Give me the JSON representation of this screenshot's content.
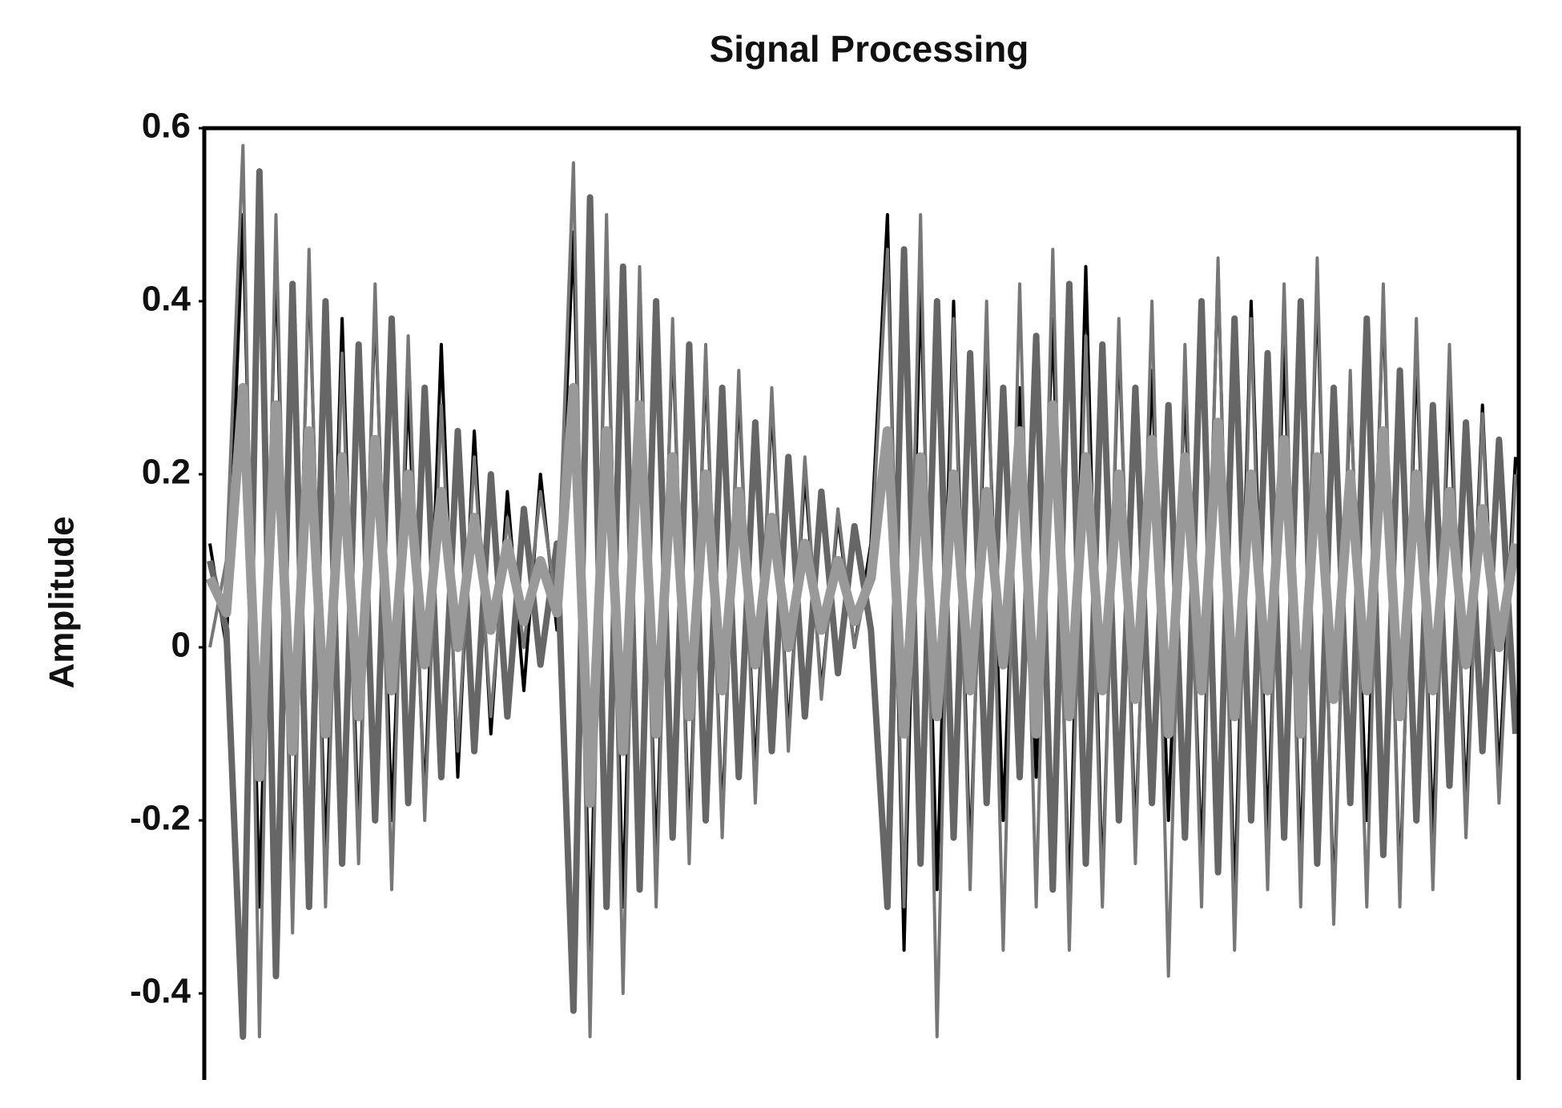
{
  "chart_data": {
    "type": "line",
    "title": "Signal Processing",
    "y_label": "Amplitude",
    "ylim": [
      -0.5,
      0.6
    ],
    "yticks": [
      -0.4,
      -0.2,
      0,
      0.2,
      0.4,
      0.6
    ],
    "grid": false,
    "series": [
      {
        "color": "#000000",
        "values": [
          0.12,
          0.0,
          0.5,
          -0.3,
          0.45,
          -0.28,
          0.44,
          -0.25,
          0.38,
          -0.22,
          0.4,
          -0.2,
          0.3,
          -0.18,
          0.35,
          -0.15,
          0.25,
          -0.1,
          0.18,
          -0.05,
          0.2,
          0.02,
          0.48,
          -0.35,
          0.45,
          -0.3,
          0.4,
          -0.25,
          0.36,
          -0.22,
          0.33,
          -0.2,
          0.3,
          -0.15,
          0.28,
          -0.1,
          0.2,
          -0.05,
          0.15,
          0.0,
          0.12,
          0.5,
          -0.35,
          0.42,
          -0.28,
          0.4,
          -0.25,
          0.35,
          -0.2,
          0.3,
          -0.15,
          0.38,
          -0.3,
          0.44,
          -0.28,
          0.36,
          -0.22,
          0.32,
          -0.2,
          0.3,
          -0.25,
          0.44,
          -0.3,
          0.4,
          -0.22,
          0.35,
          -0.25,
          0.42,
          -0.3,
          0.3,
          -0.2,
          0.4,
          -0.28,
          0.34,
          -0.22,
          0.3,
          -0.18,
          0.28,
          -0.15,
          0.22
        ]
      },
      {
        "color": "#666666",
        "values": [
          0.1,
          0.02,
          -0.45,
          0.55,
          -0.38,
          0.42,
          -0.3,
          0.4,
          -0.25,
          0.35,
          -0.2,
          0.38,
          -0.18,
          0.3,
          -0.15,
          0.25,
          -0.12,
          0.2,
          -0.08,
          0.16,
          -0.02,
          0.12,
          -0.42,
          0.52,
          -0.3,
          0.44,
          -0.28,
          0.4,
          -0.22,
          0.35,
          -0.2,
          0.3,
          -0.15,
          0.26,
          -0.12,
          0.22,
          -0.08,
          0.18,
          -0.03,
          0.14,
          0.02,
          -0.3,
          0.46,
          -0.25,
          0.4,
          -0.22,
          0.34,
          -0.18,
          0.3,
          -0.15,
          0.36,
          -0.28,
          0.42,
          -0.25,
          0.35,
          -0.2,
          0.3,
          -0.18,
          0.28,
          -0.22,
          0.4,
          -0.26,
          0.38,
          -0.2,
          0.34,
          -0.22,
          0.4,
          -0.25,
          0.3,
          -0.18,
          0.38,
          -0.24,
          0.32,
          -0.2,
          0.28,
          -0.16,
          0.26,
          -0.12,
          0.24,
          -0.1
        ]
      },
      {
        "color": "#777777",
        "values": [
          0.0,
          0.1,
          0.58,
          -0.45,
          0.5,
          -0.33,
          0.46,
          -0.3,
          0.34,
          -0.25,
          0.42,
          -0.28,
          0.36,
          -0.2,
          0.28,
          -0.12,
          0.22,
          -0.08,
          0.15,
          0.0,
          0.18,
          0.04,
          0.56,
          -0.45,
          0.5,
          -0.4,
          0.44,
          -0.3,
          0.38,
          -0.25,
          0.35,
          -0.22,
          0.32,
          -0.18,
          0.3,
          -0.12,
          0.22,
          -0.06,
          0.16,
          0.0,
          0.1,
          0.46,
          -0.3,
          0.5,
          -0.45,
          0.38,
          -0.28,
          0.4,
          -0.35,
          0.42,
          -0.3,
          0.46,
          -0.35,
          0.36,
          -0.3,
          0.38,
          -0.25,
          0.4,
          -0.38,
          0.35,
          -0.3,
          0.45,
          -0.35,
          0.38,
          -0.28,
          0.42,
          -0.3,
          0.45,
          -0.32,
          0.32,
          -0.3,
          0.42,
          -0.3,
          0.38,
          -0.28,
          0.35,
          -0.22,
          0.27,
          -0.18,
          0.2
        ]
      },
      {
        "color": "#999999",
        "values": [
          0.08,
          0.04,
          0.3,
          -0.15,
          0.28,
          -0.12,
          0.25,
          -0.1,
          0.22,
          -0.08,
          0.24,
          -0.05,
          0.2,
          -0.02,
          0.18,
          0.0,
          0.15,
          0.02,
          0.12,
          0.03,
          0.1,
          0.04,
          0.3,
          -0.18,
          0.25,
          -0.12,
          0.28,
          -0.1,
          0.22,
          -0.08,
          0.2,
          -0.05,
          0.18,
          -0.02,
          0.15,
          0.0,
          0.12,
          0.02,
          0.1,
          0.03,
          0.08,
          0.25,
          -0.1,
          0.22,
          -0.08,
          0.2,
          -0.05,
          0.18,
          -0.02,
          0.25,
          -0.1,
          0.28,
          -0.08,
          0.22,
          -0.05,
          0.2,
          -0.06,
          0.24,
          -0.1,
          0.22,
          -0.05,
          0.26,
          -0.08,
          0.2,
          -0.05,
          0.24,
          -0.1,
          0.22,
          -0.06,
          0.2,
          -0.05,
          0.25,
          -0.08,
          0.2,
          -0.05,
          0.18,
          -0.02,
          0.16,
          0.0,
          0.12
        ]
      }
    ]
  }
}
